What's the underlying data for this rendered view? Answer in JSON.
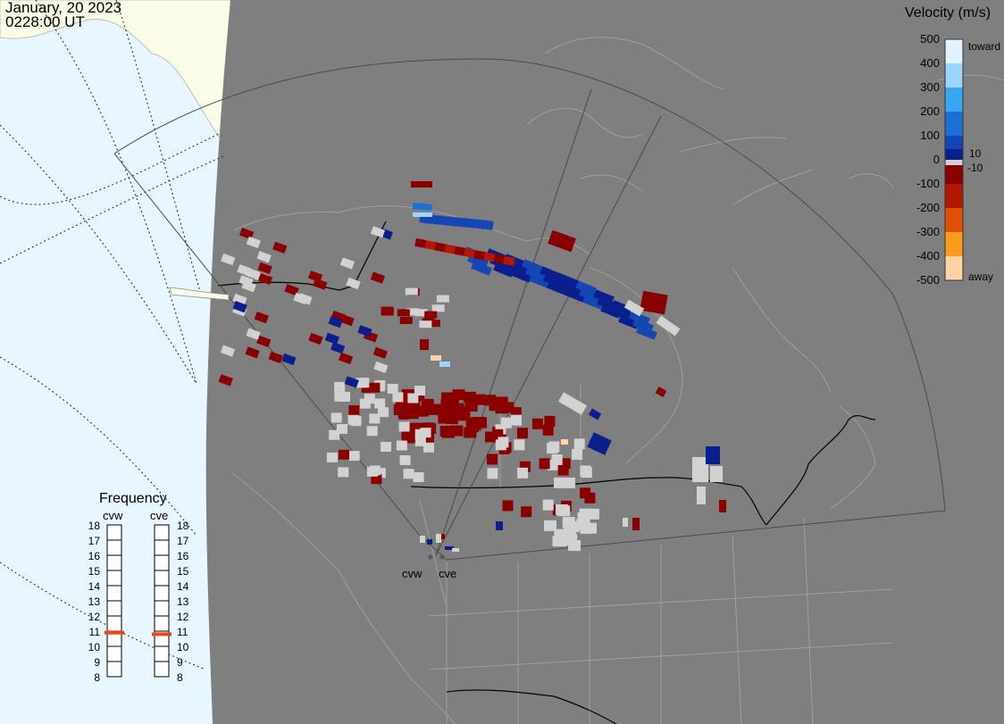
{
  "header": {
    "date": "January, 20 2023",
    "time": "0228:00 UT"
  },
  "velocity_scale": {
    "title": "Velocity (m/s)",
    "ticks": [
      "500",
      "400",
      "300",
      "200",
      "100",
      "0",
      "-100",
      "-200",
      "-300",
      "-400",
      "-500"
    ],
    "toward_label": "toward",
    "away_label": "away",
    "inner_pos_label": "10",
    "inner_neg_label": "-10",
    "colors": [
      "#e2f2ff",
      "#9cd4fb",
      "#39a7f0",
      "#1c6fd6",
      "#1446b4",
      "#0b1e8e",
      "#8a0000",
      "#b41800",
      "#df5100",
      "#ff9a1c",
      "#ffd3a5"
    ],
    "ground_scatter_color": "#d2d2d2"
  },
  "frequency_panel": {
    "title": "Frequency",
    "radars": [
      "cvw",
      "cve"
    ],
    "scale_values": [
      "18",
      "17",
      "16",
      "15",
      "14",
      "13",
      "12",
      "11",
      "10",
      "9",
      "8"
    ],
    "current_freq_mhz": {
      "cvw": 10.9,
      "cve": 10.8
    },
    "marker_color": "#e8461c"
  },
  "radar_labels": [
    "cvw",
    "cve"
  ],
  "map_colors": {
    "ocean_day": "#e7f6ff",
    "land_day": "#fbfce8",
    "night": "#7f7f7f",
    "coast": "#a0a0a0",
    "border": "#000000",
    "fov": "#454545"
  }
}
